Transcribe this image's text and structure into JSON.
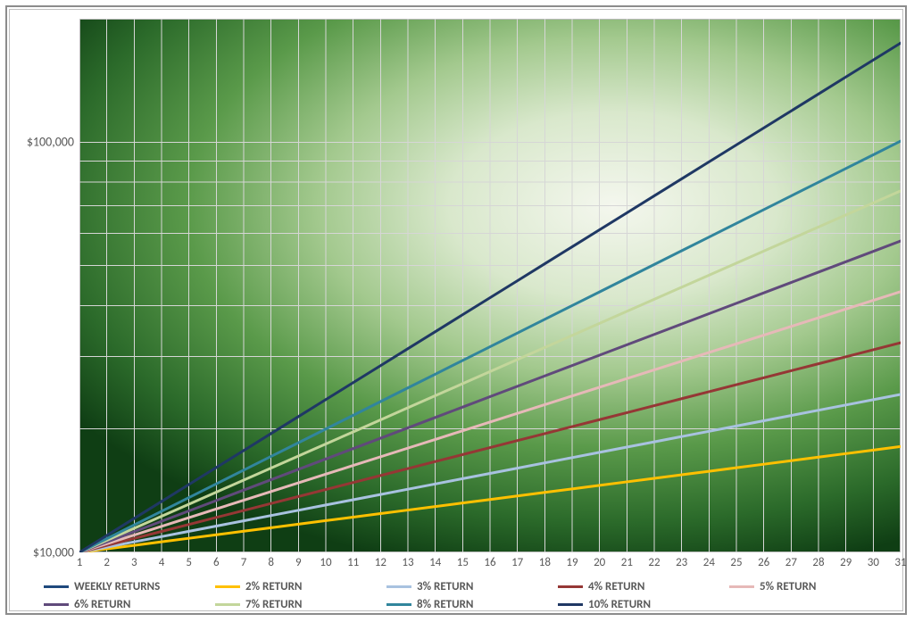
{
  "chart": {
    "type": "line",
    "y_scale": "log",
    "y_axis": {
      "min": 10000,
      "max": 200000,
      "label_min": "$10,000",
      "label_100k": "$100,000",
      "minor_ticks": [
        10000,
        20000,
        30000,
        40000,
        50000,
        60000,
        70000,
        80000,
        90000,
        100000,
        200000
      ]
    },
    "x_axis": {
      "min": 1,
      "max": 31,
      "ticks": [
        1,
        2,
        3,
        4,
        5,
        6,
        7,
        8,
        9,
        10,
        11,
        12,
        13,
        14,
        15,
        16,
        17,
        18,
        19,
        20,
        21,
        22,
        23,
        24,
        25,
        26,
        27,
        28,
        29,
        30,
        31
      ],
      "tick_labels": [
        "1",
        "2",
        "3",
        "4",
        "5",
        "6",
        "7",
        "8",
        "9",
        "10",
        "11",
        "12",
        "13",
        "14",
        "15",
        "16",
        "17",
        "18",
        "19",
        "20",
        "21",
        "22",
        "23",
        "24",
        "25",
        "26",
        "27",
        "28",
        "29",
        "30",
        "31"
      ]
    },
    "background": {
      "gradient_from": "#0f3e14",
      "gradient_to": "#f4f7ee"
    },
    "grid_color": "#d6d6d6",
    "plot_border_color": "#9e9e9e",
    "text_color": "#595959",
    "line_width": 3,
    "series": [
      {
        "key": "r2",
        "label": "2% RETURN",
        "color": "#ffc000",
        "start": 10000,
        "rate": 0.02
      },
      {
        "key": "r3",
        "label": "3% RETURN",
        "color": "#a8c2e0",
        "start": 10000,
        "rate": 0.03
      },
      {
        "key": "r4",
        "label": "4% RETURN",
        "color": "#953735",
        "start": 10000,
        "rate": 0.04
      },
      {
        "key": "r5",
        "label": "5% RETURN",
        "color": "#e6b9b8",
        "start": 10000,
        "rate": 0.05
      },
      {
        "key": "r6",
        "label": "6% RETURN",
        "color": "#604a7b",
        "start": 10000,
        "rate": 0.06
      },
      {
        "key": "r7",
        "label": "7% RETURN",
        "color": "#c3d69b",
        "start": 10000,
        "rate": 0.07
      },
      {
        "key": "r8",
        "label": "8% RETURN",
        "color": "#31859c",
        "start": 10000,
        "rate": 0.08
      },
      {
        "key": "r10",
        "label": "10% RETURN",
        "color": "#1f3864",
        "start": 10000,
        "rate": 0.1
      }
    ],
    "legend": {
      "header_label": "WEEKLY RETURNS",
      "header_color": "#1f497d",
      "rows": [
        [
          "header",
          "r2",
          "r3",
          "r4",
          "r5"
        ],
        [
          "r6",
          "r7",
          "r8",
          "r10"
        ]
      ]
    }
  }
}
